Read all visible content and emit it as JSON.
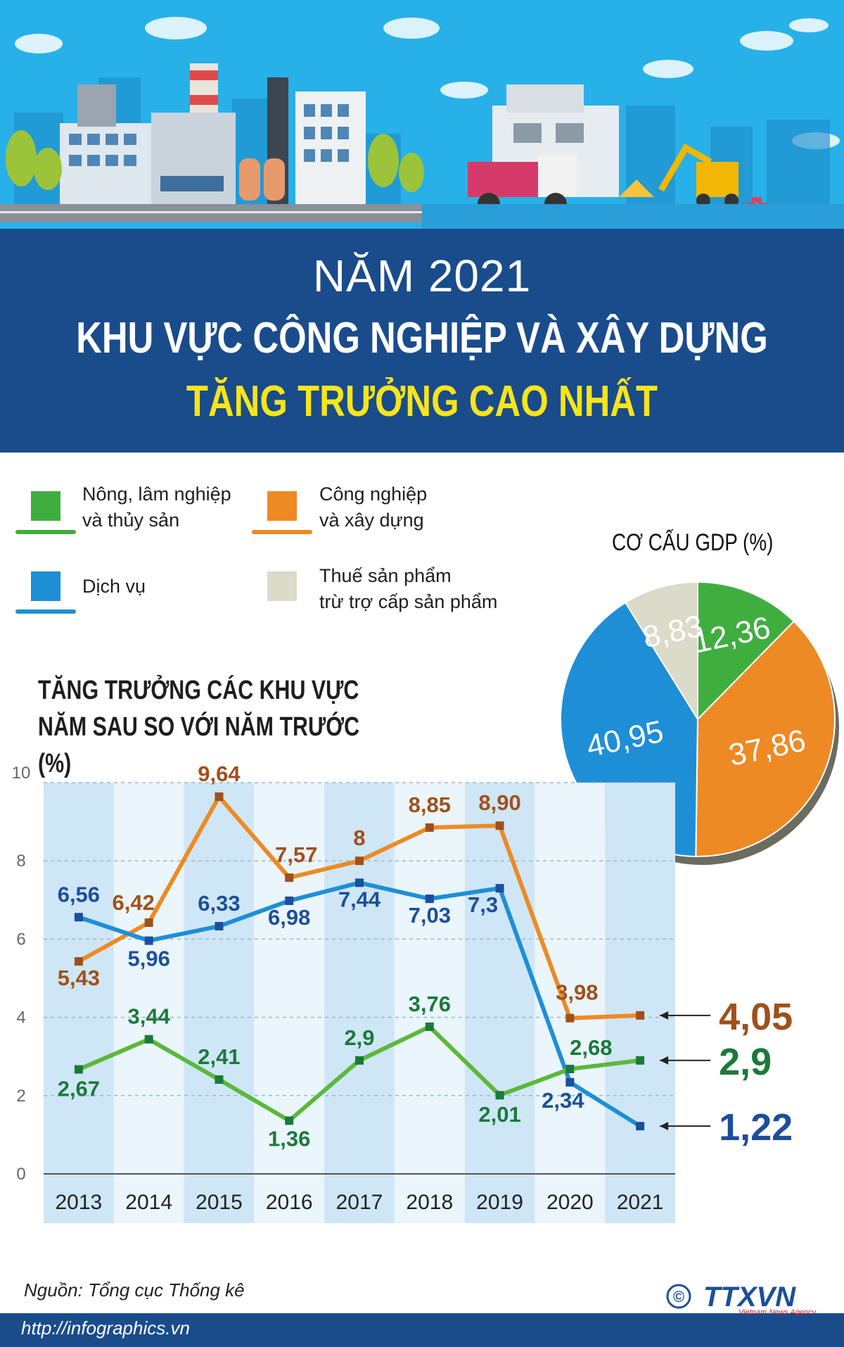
{
  "header": {
    "line1": "NĂM 2021",
    "line2": "KHU VỰC CÔNG NGHIỆP VÀ XÂY DỰNG",
    "line3": "TĂNG TRƯỞNG CAO NHẤT"
  },
  "legend": [
    {
      "label": "Nông, lâm nghiệp\nvà thủy sản",
      "color": "#3fae3f"
    },
    {
      "label": "Công nghiệp\nvà xây dựng",
      "color": "#ee8a24"
    },
    {
      "label": "Dịch vụ",
      "color": "#1e8fd6"
    },
    {
      "label": "Thuế sản phẩm\ntrừ trợ cấp sản phẩm",
      "color": "#dcdac8"
    }
  ],
  "pie_title": "CƠ CẤU GDP (%)",
  "growth_title": "TĂNG TRƯỞNG CÁC KHU VỰC\nNĂM SAU SO VỚI NĂM TRƯỚC (%)",
  "source": "Nguồn: Tổng cục Thống kê",
  "url": "http://infographics.vn",
  "logo": {
    "text": "TTXVN",
    "sub": "Vietnam News Agency",
    "copyright": "©"
  },
  "chart_data": [
    {
      "type": "pie",
      "title": "CƠ CẤU GDP (%)",
      "slices": [
        {
          "label": "Nông, lâm nghiệp và thủy sản",
          "value": 12.36,
          "display": "12,36",
          "color": "#3fae3f"
        },
        {
          "label": "Công nghiệp và xây dựng",
          "value": 37.86,
          "display": "37,86",
          "color": "#ee8a24"
        },
        {
          "label": "Dịch vụ",
          "value": 40.95,
          "display": "40,95",
          "color": "#1e8fd6"
        },
        {
          "label": "Thuế sản phẩm trừ trợ cấp sản phẩm",
          "value": 8.83,
          "display": "8,83",
          "color": "#dcdac8"
        }
      ]
    },
    {
      "type": "line",
      "title": "TĂNG TRƯỞNG CÁC KHU VỰC NĂM SAU SO VỚI NĂM TRƯỚC (%)",
      "categories": [
        "2013",
        "2014",
        "2015",
        "2016",
        "2017",
        "2018",
        "2019",
        "2020",
        "2021"
      ],
      "yticks": [
        "0",
        "2",
        "4",
        "6",
        "8",
        "10"
      ],
      "ylim": [
        0,
        10
      ],
      "series": [
        {
          "name": "Công nghiệp và xây dựng",
          "color": "#ee8a24",
          "label_color": "#a0501b",
          "values": [
            5.43,
            6.42,
            9.64,
            7.57,
            8,
            8.85,
            8.9,
            3.98,
            4.05
          ],
          "labels": [
            "5,43",
            "6,42",
            "9,64",
            "7,57",
            "8",
            "8,85",
            "8,90",
            "3,98",
            "4,05"
          ]
        },
        {
          "name": "Dịch vụ",
          "color": "#1e8fd6",
          "label_color": "#1c4f9a",
          "values": [
            6.56,
            5.96,
            6.33,
            6.98,
            7.44,
            7.03,
            7.3,
            2.34,
            1.22
          ],
          "labels": [
            "6,56",
            "5,96",
            "6,33",
            "6,98",
            "7,44",
            "7,03",
            "7,3",
            "2,34",
            "1,22"
          ]
        },
        {
          "name": "Nông, lâm nghiệp và thủy sản",
          "color": "#5cb83a",
          "label_color": "#1b7a3a",
          "values": [
            2.67,
            3.44,
            2.41,
            1.36,
            2.9,
            3.76,
            2.01,
            2.68,
            2.9
          ],
          "labels": [
            "2,67",
            "3,44",
            "2,41",
            "1,36",
            "2,9",
            "3,76",
            "2,01",
            "2,68",
            "2,9"
          ]
        }
      ]
    }
  ]
}
